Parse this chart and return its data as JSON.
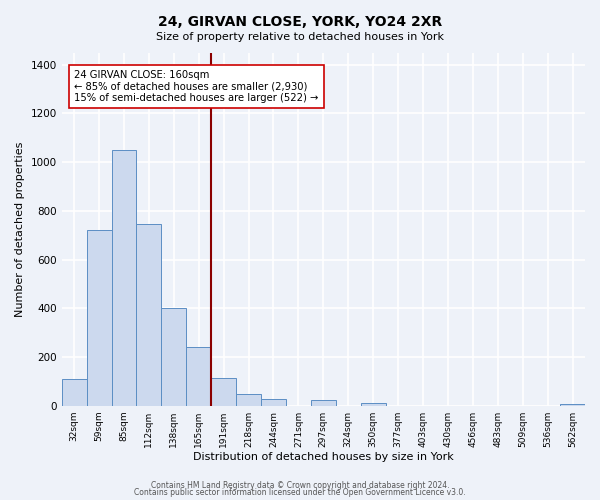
{
  "title": "24, GIRVAN CLOSE, YORK, YO24 2XR",
  "subtitle": "Size of property relative to detached houses in York",
  "xlabel": "Distribution of detached houses by size in York",
  "ylabel": "Number of detached properties",
  "bar_color": "#ccd9ee",
  "bar_edge_color": "#5b8ec4",
  "vline_color": "#8b0000",
  "vline_bin": 5,
  "cat_labels": [
    "32sqm",
    "59sqm",
    "85sqm",
    "112sqm",
    "138sqm",
    "165sqm",
    "191sqm",
    "218sqm",
    "244sqm",
    "271sqm",
    "297sqm",
    "324sqm",
    "350sqm",
    "377sqm",
    "403sqm",
    "430sqm",
    "456sqm",
    "483sqm",
    "509sqm",
    "536sqm",
    "562sqm"
  ],
  "values": [
    108,
    720,
    1050,
    748,
    403,
    243,
    113,
    48,
    27,
    0,
    22,
    0,
    10,
    0,
    0,
    0,
    0,
    0,
    0,
    0,
    5
  ],
  "ylim": [
    0,
    1450
  ],
  "yticks": [
    0,
    200,
    400,
    600,
    800,
    1000,
    1200,
    1400
  ],
  "annotation_line1": "24 GIRVAN CLOSE: 160sqm",
  "annotation_line2": "← 85% of detached houses are smaller (2,930)",
  "annotation_line3": "15% of semi-detached houses are larger (522) →",
  "footer1": "Contains HM Land Registry data © Crown copyright and database right 2024.",
  "footer2": "Contains public sector information licensed under the Open Government Licence v3.0.",
  "background_color": "#eef2f9",
  "grid_color": "#ffffff"
}
